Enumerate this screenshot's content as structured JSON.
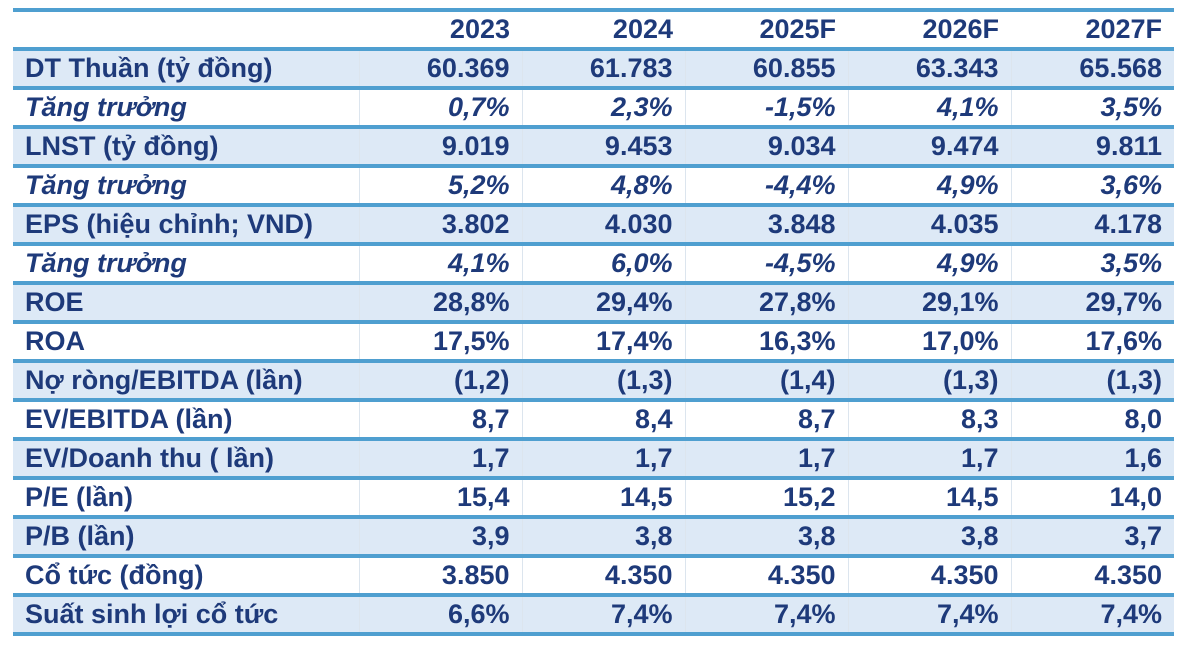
{
  "chart_data": {
    "type": "table",
    "title": "",
    "columns": [
      "",
      "2023",
      "2024",
      "2025F",
      "2026F",
      "2027F"
    ],
    "rows": [
      {
        "label": "DT Thuần (tỷ đồng)",
        "values": [
          "60.369",
          "61.783",
          "60.855",
          "63.343",
          "65.568"
        ],
        "style": "shaded"
      },
      {
        "label": "Tăng trưởng",
        "values": [
          "0,7%",
          "2,3%",
          "-1,5%",
          "4,1%",
          "3,5%"
        ],
        "style": "growth"
      },
      {
        "label": "LNST (tỷ đồng)",
        "values": [
          "9.019",
          "9.453",
          "9.034",
          "9.474",
          "9.811"
        ],
        "style": "shaded"
      },
      {
        "label": "Tăng trưởng",
        "values": [
          "5,2%",
          "4,8%",
          "-4,4%",
          "4,9%",
          "3,6%"
        ],
        "style": "growth"
      },
      {
        "label": "EPS (hiệu chỉnh; VND)",
        "values": [
          "3.802",
          "4.030",
          "3.848",
          "4.035",
          "4.178"
        ],
        "style": "shaded"
      },
      {
        "label": "Tăng trưởng",
        "values": [
          "4,1%",
          "6,0%",
          "-4,5%",
          "4,9%",
          "3,5%"
        ],
        "style": "growth"
      },
      {
        "label": "ROE",
        "values": [
          "28,8%",
          "29,4%",
          "27,8%",
          "29,1%",
          "29,7%"
        ],
        "style": "shaded"
      },
      {
        "label": "ROA",
        "values": [
          "17,5%",
          "17,4%",
          "16,3%",
          "17,0%",
          "17,6%"
        ],
        "style": "plain"
      },
      {
        "label": "Nợ ròng/EBITDA (lần)",
        "values": [
          "(1,2)",
          "(1,3)",
          "(1,4)",
          "(1,3)",
          "(1,3)"
        ],
        "style": "shaded"
      },
      {
        "label": "EV/EBITDA (lần)",
        "values": [
          "8,7",
          "8,4",
          "8,7",
          "8,3",
          "8,0"
        ],
        "style": "plain"
      },
      {
        "label": "EV/Doanh thu ( lần)",
        "values": [
          "1,7",
          "1,7",
          "1,7",
          "1,7",
          "1,6"
        ],
        "style": "shaded"
      },
      {
        "label": "P/E (lần)",
        "values": [
          "15,4",
          "14,5",
          "15,2",
          "14,5",
          "14,0"
        ],
        "style": "plain"
      },
      {
        "label": "P/B (lần)",
        "values": [
          "3,9",
          "3,8",
          "3,8",
          "3,8",
          "3,7"
        ],
        "style": "shaded"
      },
      {
        "label": "Cổ tức (đồng)",
        "values": [
          "3.850",
          "4.350",
          "4.350",
          "4.350",
          "4.350"
        ],
        "style": "plain"
      },
      {
        "label": "Suất sinh lợi cổ tức",
        "values": [
          "6,6%",
          "7,4%",
          "7,4%",
          "7,4%",
          "7,4%"
        ],
        "style": "shaded"
      }
    ],
    "layout": {
      "legend": "none",
      "grid": "horizontal-rules",
      "shaded_row_background": "#dde9f6",
      "rule_color": "#4f9fd0",
      "text_color": "#1e3a7a",
      "background": "#ffffff"
    }
  }
}
